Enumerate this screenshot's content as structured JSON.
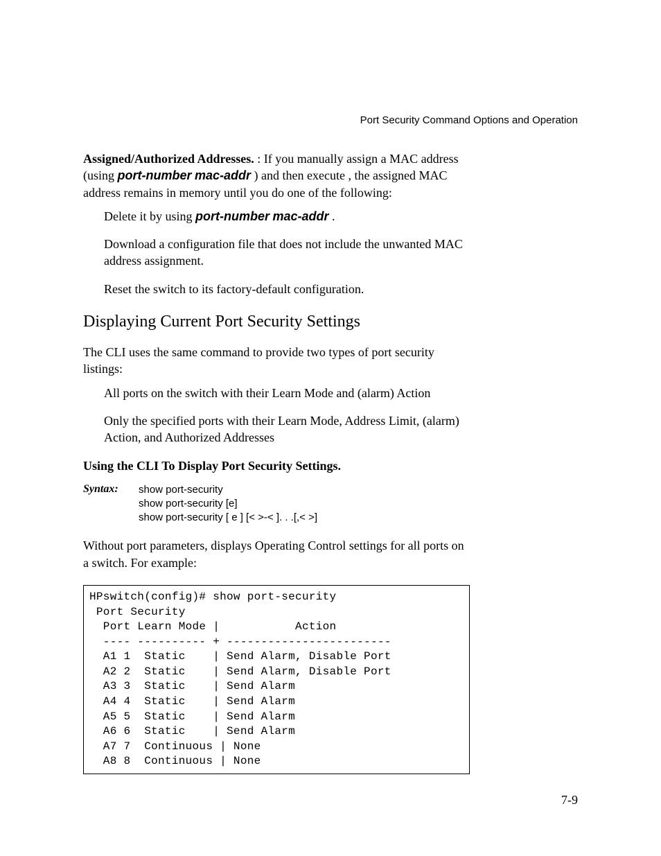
{
  "header": {
    "running_title": "Port Security Command Options and Operation"
  },
  "intro": {
    "assigned_bold": "Assigned/Authorized Addresses.",
    "assigned_colon_text": " : If you manually assign a MAC address (using ",
    "port_number": "port-number",
    "mac_addr": "mac-addr",
    "assigned_execute": " ) and then execute ",
    "assigned_remain": ", the assigned MAC address remains in memory until you do one of the following:"
  },
  "bullets1": {
    "b1a": "Delete it by using ",
    "b1b": "port-number",
    "b1c": "mac-addr",
    "b1d": " .",
    "b2": "Download a configuration file that does not include the unwanted MAC address assignment.",
    "b3": "Reset the switch to its factory-default configuration."
  },
  "section": {
    "heading": "Displaying Current Port Security Settings",
    "intro": "The CLI uses the same command to provide two types of port security listings:",
    "li1": "All ports on the switch with their Learn Mode and (alarm) Action",
    "li2": "Only the specified ports with their Learn Mode, Address Limit, (alarm) Action, and Authorized Addresses",
    "subhead": "Using the CLI To Display Port Security Settings."
  },
  "syntax": {
    "label": "Syntax:",
    "l1": "show port-security",
    "l2": "show port-security [e]",
    "l3": "show port-security [ e ] [< ",
    "l3b": " >-< ",
    "l3c": " ]. . .[,< ",
    "l3d": " >]"
  },
  "after_syntax": {
    "p_a": "Without port parameters, ",
    "p_b": " displays Operating Control settings for all ports on a switch. For example:"
  },
  "cli": {
    "text": "HPswitch(config)# show port-security\n Port Security\n  Port Learn Mode |           Action\n  ---- ---------- + ------------------------\n  A1 1  Static    | Send Alarm, Disable Port\n  A2 2  Static    | Send Alarm, Disable Port\n  A3 3  Static    | Send Alarm\n  A4 4  Static    | Send Alarm\n  A5 5  Static    | Send Alarm\n  A6 6  Static    | Send Alarm\n  A7 7  Continuous | None\n  A8 8  Continuous | None"
  },
  "pagenum": "7-9",
  "spacers": {
    "gap1": "                         ",
    "gap2": "                       ",
    "gap3": "                                                     ",
    "gap4": "                             ",
    "gap5": "               ",
    "gap6": "           ",
    "gap7": "               ",
    "gap8": "                                     "
  }
}
